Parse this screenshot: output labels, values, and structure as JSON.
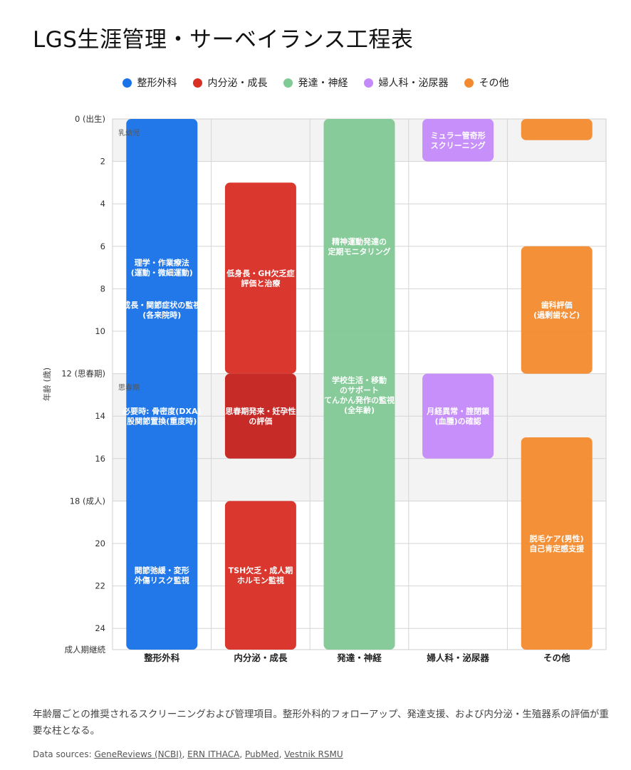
{
  "title": "LGS生涯管理・サーベイランス工程表",
  "legend": [
    {
      "label": "整形外科",
      "color": "#1a73e8"
    },
    {
      "label": "内分泌・成長",
      "color": "#d93025"
    },
    {
      "label": "発達・神経",
      "color": "#81c995"
    },
    {
      "label": "婦人科・泌尿器",
      "color": "#c58af9"
    },
    {
      "label": "その他",
      "color": "#f28b30"
    }
  ],
  "chart_data": {
    "type": "timeline",
    "ylabel": "年齢 (歳)",
    "ylim": [
      0,
      25
    ],
    "y_ticks": [
      {
        "value": 0,
        "label": "0 (出生)"
      },
      {
        "value": 2,
        "label": "2"
      },
      {
        "value": 4,
        "label": "4"
      },
      {
        "value": 6,
        "label": "6"
      },
      {
        "value": 8,
        "label": "8"
      },
      {
        "value": 10,
        "label": "10"
      },
      {
        "value": 12,
        "label": "12 (思春期)"
      },
      {
        "value": 14,
        "label": "14"
      },
      {
        "value": 16,
        "label": "16"
      },
      {
        "value": 18,
        "label": "18 (成人)"
      },
      {
        "value": 20,
        "label": "20"
      },
      {
        "value": 22,
        "label": "22"
      },
      {
        "value": 24,
        "label": "24"
      },
      {
        "value": 25,
        "label": "成人期継続"
      }
    ],
    "categories": [
      "整形外科",
      "内分泌・成長",
      "発達・神経",
      "婦人科・泌尿器",
      "その他"
    ],
    "phases": [
      {
        "label": "乳幼児",
        "start": 0,
        "end": 2,
        "shaded": true
      },
      {
        "label": "",
        "start": 2,
        "end": 12,
        "shaded": false
      },
      {
        "label": "思春期",
        "start": 12,
        "end": 18,
        "shaded": true
      }
    ],
    "bars": [
      {
        "category": 0,
        "start": 0,
        "end": 25,
        "color": "#1a73e8",
        "texts": [
          {
            "at": 7,
            "lines": [
              "理学・作業療法",
              "(運動・微細運動)"
            ]
          },
          {
            "at": 9,
            "lines": [
              "成長・関節症状の監視",
              "(各来院時)"
            ]
          },
          {
            "at": 14,
            "lines": [
              "必要時: 骨密度(DXA)",
              "股関節置換(重度時)"
            ]
          },
          {
            "at": 21.5,
            "lines": [
              "関節弛緩・変形",
              "外傷リスク監視"
            ]
          }
        ]
      },
      {
        "category": 1,
        "start": 3,
        "end": 12,
        "color": "#d93025",
        "texts": [
          {
            "at": 7.5,
            "lines": [
              "低身長・GH欠乏症",
              "評価と治療"
            ]
          }
        ]
      },
      {
        "category": 1,
        "start": 12,
        "end": 16,
        "color": "#c5221f",
        "texts": [
          {
            "at": 14,
            "lines": [
              "思春期発来・妊孕性",
              "の評価"
            ]
          }
        ]
      },
      {
        "category": 1,
        "start": 18,
        "end": 25,
        "color": "#d93025",
        "texts": [
          {
            "at": 21.5,
            "lines": [
              "TSH欠乏・成人期",
              "ホルモン監視"
            ]
          }
        ]
      },
      {
        "category": 2,
        "start": 0,
        "end": 25,
        "color": "#81c995",
        "texts": [
          {
            "at": 6,
            "lines": [
              "精神運動発達の",
              "定期モニタリング"
            ]
          },
          {
            "at": 13,
            "lines": [
              "学校生活・移動",
              "のサポート",
              "てんかん発作の監視",
              "(全年齢)"
            ]
          }
        ]
      },
      {
        "category": 3,
        "start": 0,
        "end": 2,
        "color": "#c58af9",
        "texts": [
          {
            "at": 1,
            "lines": [
              "ミュラー管奇形",
              "スクリーニング"
            ]
          }
        ]
      },
      {
        "category": 3,
        "start": 12,
        "end": 16,
        "color": "#c58af9",
        "texts": [
          {
            "at": 14,
            "lines": [
              "月経異常・腟閉鎖",
              "(血腫)の確認"
            ]
          }
        ]
      },
      {
        "category": 4,
        "start": 0,
        "end": 1,
        "color": "#f28b30",
        "texts": []
      },
      {
        "category": 4,
        "start": 6,
        "end": 12,
        "color": "#f28b30",
        "texts": [
          {
            "at": 9,
            "lines": [
              "歯科評価",
              "(過剰歯など)"
            ]
          }
        ]
      },
      {
        "category": 4,
        "start": 15,
        "end": 25,
        "color": "#f28b30",
        "texts": [
          {
            "at": 20,
            "lines": [
              "脱毛ケア(男性)",
              "自己肯定感支援"
            ]
          }
        ]
      }
    ]
  },
  "caption": "年齢層ごとの推奨されるスクリーニングおよび管理項目。整形外科的フォローアップ、発達支援、および内分泌・生殖器系の評価が重要な柱となる。",
  "sources": {
    "prefix": "Data sources: ",
    "links": [
      "GeneReviews (NCBI)",
      "ERN ITHACA",
      "PubMed",
      "Vestnik RSMU"
    ]
  }
}
